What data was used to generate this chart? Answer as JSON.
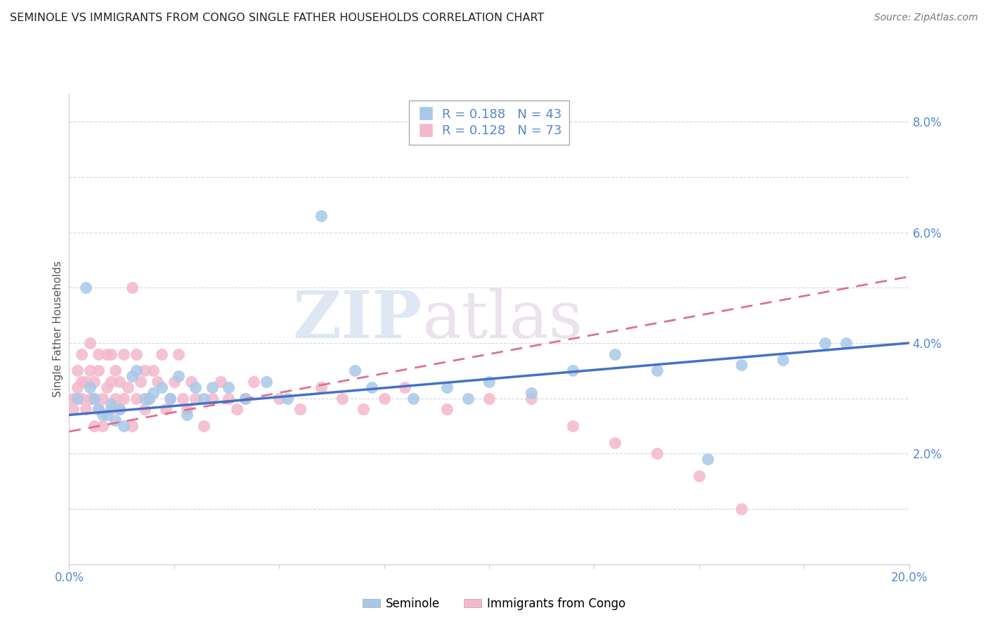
{
  "title": "SEMINOLE VS IMMIGRANTS FROM CONGO SINGLE FATHER HOUSEHOLDS CORRELATION CHART",
  "source": "Source: ZipAtlas.com",
  "ylabel": "Single Father Households",
  "xlim": [
    0.0,
    0.2
  ],
  "ylim": [
    0.0,
    0.085
  ],
  "xticks": [
    0.0,
    0.025,
    0.05,
    0.075,
    0.1,
    0.125,
    0.15,
    0.175,
    0.2
  ],
  "yticks": [
    0.0,
    0.01,
    0.02,
    0.03,
    0.04,
    0.05,
    0.06,
    0.07,
    0.08
  ],
  "xticklabels": [
    "0.0%",
    "",
    "",
    "",
    "",
    "",
    "",
    "",
    "20.0%"
  ],
  "yticklabels_right": [
    "",
    "",
    "2.0%",
    "",
    "4.0%",
    "",
    "6.0%",
    "",
    "8.0%"
  ],
  "seminole_color": "#a8c8e8",
  "congo_color": "#f4b8cc",
  "seminole_line_color": "#4472c4",
  "congo_line_color": "#e07090",
  "seminole_R": 0.188,
  "seminole_N": 43,
  "congo_R": 0.128,
  "congo_N": 73,
  "legend_label_seminole": "Seminole",
  "legend_label_congo": "Immigrants from Congo",
  "watermark_zip": "ZIP",
  "watermark_atlas": "atlas",
  "background_color": "#ffffff",
  "grid_color": "#d0d8e8",
  "title_color": "#222222",
  "tick_color": "#5588cc",
  "seminole_x": [
    0.002,
    0.004,
    0.005,
    0.006,
    0.007,
    0.008,
    0.009,
    0.01,
    0.011,
    0.012,
    0.013,
    0.015,
    0.016,
    0.018,
    0.019,
    0.02,
    0.022,
    0.024,
    0.026,
    0.028,
    0.03,
    0.032,
    0.034,
    0.038,
    0.042,
    0.047,
    0.052,
    0.06,
    0.068,
    0.072,
    0.082,
    0.09,
    0.095,
    0.1,
    0.11,
    0.12,
    0.13,
    0.14,
    0.152,
    0.16,
    0.17,
    0.18,
    0.185
  ],
  "seminole_y": [
    0.03,
    0.05,
    0.032,
    0.03,
    0.028,
    0.027,
    0.027,
    0.029,
    0.026,
    0.028,
    0.025,
    0.034,
    0.035,
    0.03,
    0.03,
    0.031,
    0.032,
    0.03,
    0.034,
    0.027,
    0.032,
    0.03,
    0.032,
    0.032,
    0.03,
    0.033,
    0.03,
    0.063,
    0.035,
    0.032,
    0.03,
    0.032,
    0.03,
    0.033,
    0.031,
    0.035,
    0.038,
    0.035,
    0.019,
    0.036,
    0.037,
    0.04,
    0.04
  ],
  "congo_x": [
    0.001,
    0.001,
    0.002,
    0.002,
    0.003,
    0.003,
    0.003,
    0.004,
    0.004,
    0.005,
    0.005,
    0.005,
    0.006,
    0.006,
    0.006,
    0.007,
    0.007,
    0.007,
    0.008,
    0.008,
    0.009,
    0.009,
    0.01,
    0.01,
    0.01,
    0.011,
    0.011,
    0.012,
    0.012,
    0.013,
    0.013,
    0.014,
    0.015,
    0.015,
    0.016,
    0.016,
    0.017,
    0.018,
    0.018,
    0.019,
    0.02,
    0.021,
    0.022,
    0.023,
    0.024,
    0.025,
    0.026,
    0.027,
    0.028,
    0.029,
    0.03,
    0.032,
    0.034,
    0.036,
    0.038,
    0.04,
    0.042,
    0.044,
    0.05,
    0.055,
    0.06,
    0.065,
    0.07,
    0.075,
    0.08,
    0.09,
    0.1,
    0.11,
    0.12,
    0.13,
    0.14,
    0.15,
    0.16
  ],
  "congo_y": [
    0.03,
    0.028,
    0.032,
    0.035,
    0.03,
    0.033,
    0.038,
    0.028,
    0.033,
    0.03,
    0.035,
    0.04,
    0.025,
    0.03,
    0.033,
    0.028,
    0.035,
    0.038,
    0.025,
    0.03,
    0.032,
    0.038,
    0.028,
    0.033,
    0.038,
    0.03,
    0.035,
    0.028,
    0.033,
    0.03,
    0.038,
    0.032,
    0.05,
    0.025,
    0.03,
    0.038,
    0.033,
    0.028,
    0.035,
    0.03,
    0.035,
    0.033,
    0.038,
    0.028,
    0.03,
    0.033,
    0.038,
    0.03,
    0.028,
    0.033,
    0.03,
    0.025,
    0.03,
    0.033,
    0.03,
    0.028,
    0.03,
    0.033,
    0.03,
    0.028,
    0.032,
    0.03,
    0.028,
    0.03,
    0.032,
    0.028,
    0.03,
    0.03,
    0.025,
    0.022,
    0.02,
    0.016,
    0.01
  ]
}
